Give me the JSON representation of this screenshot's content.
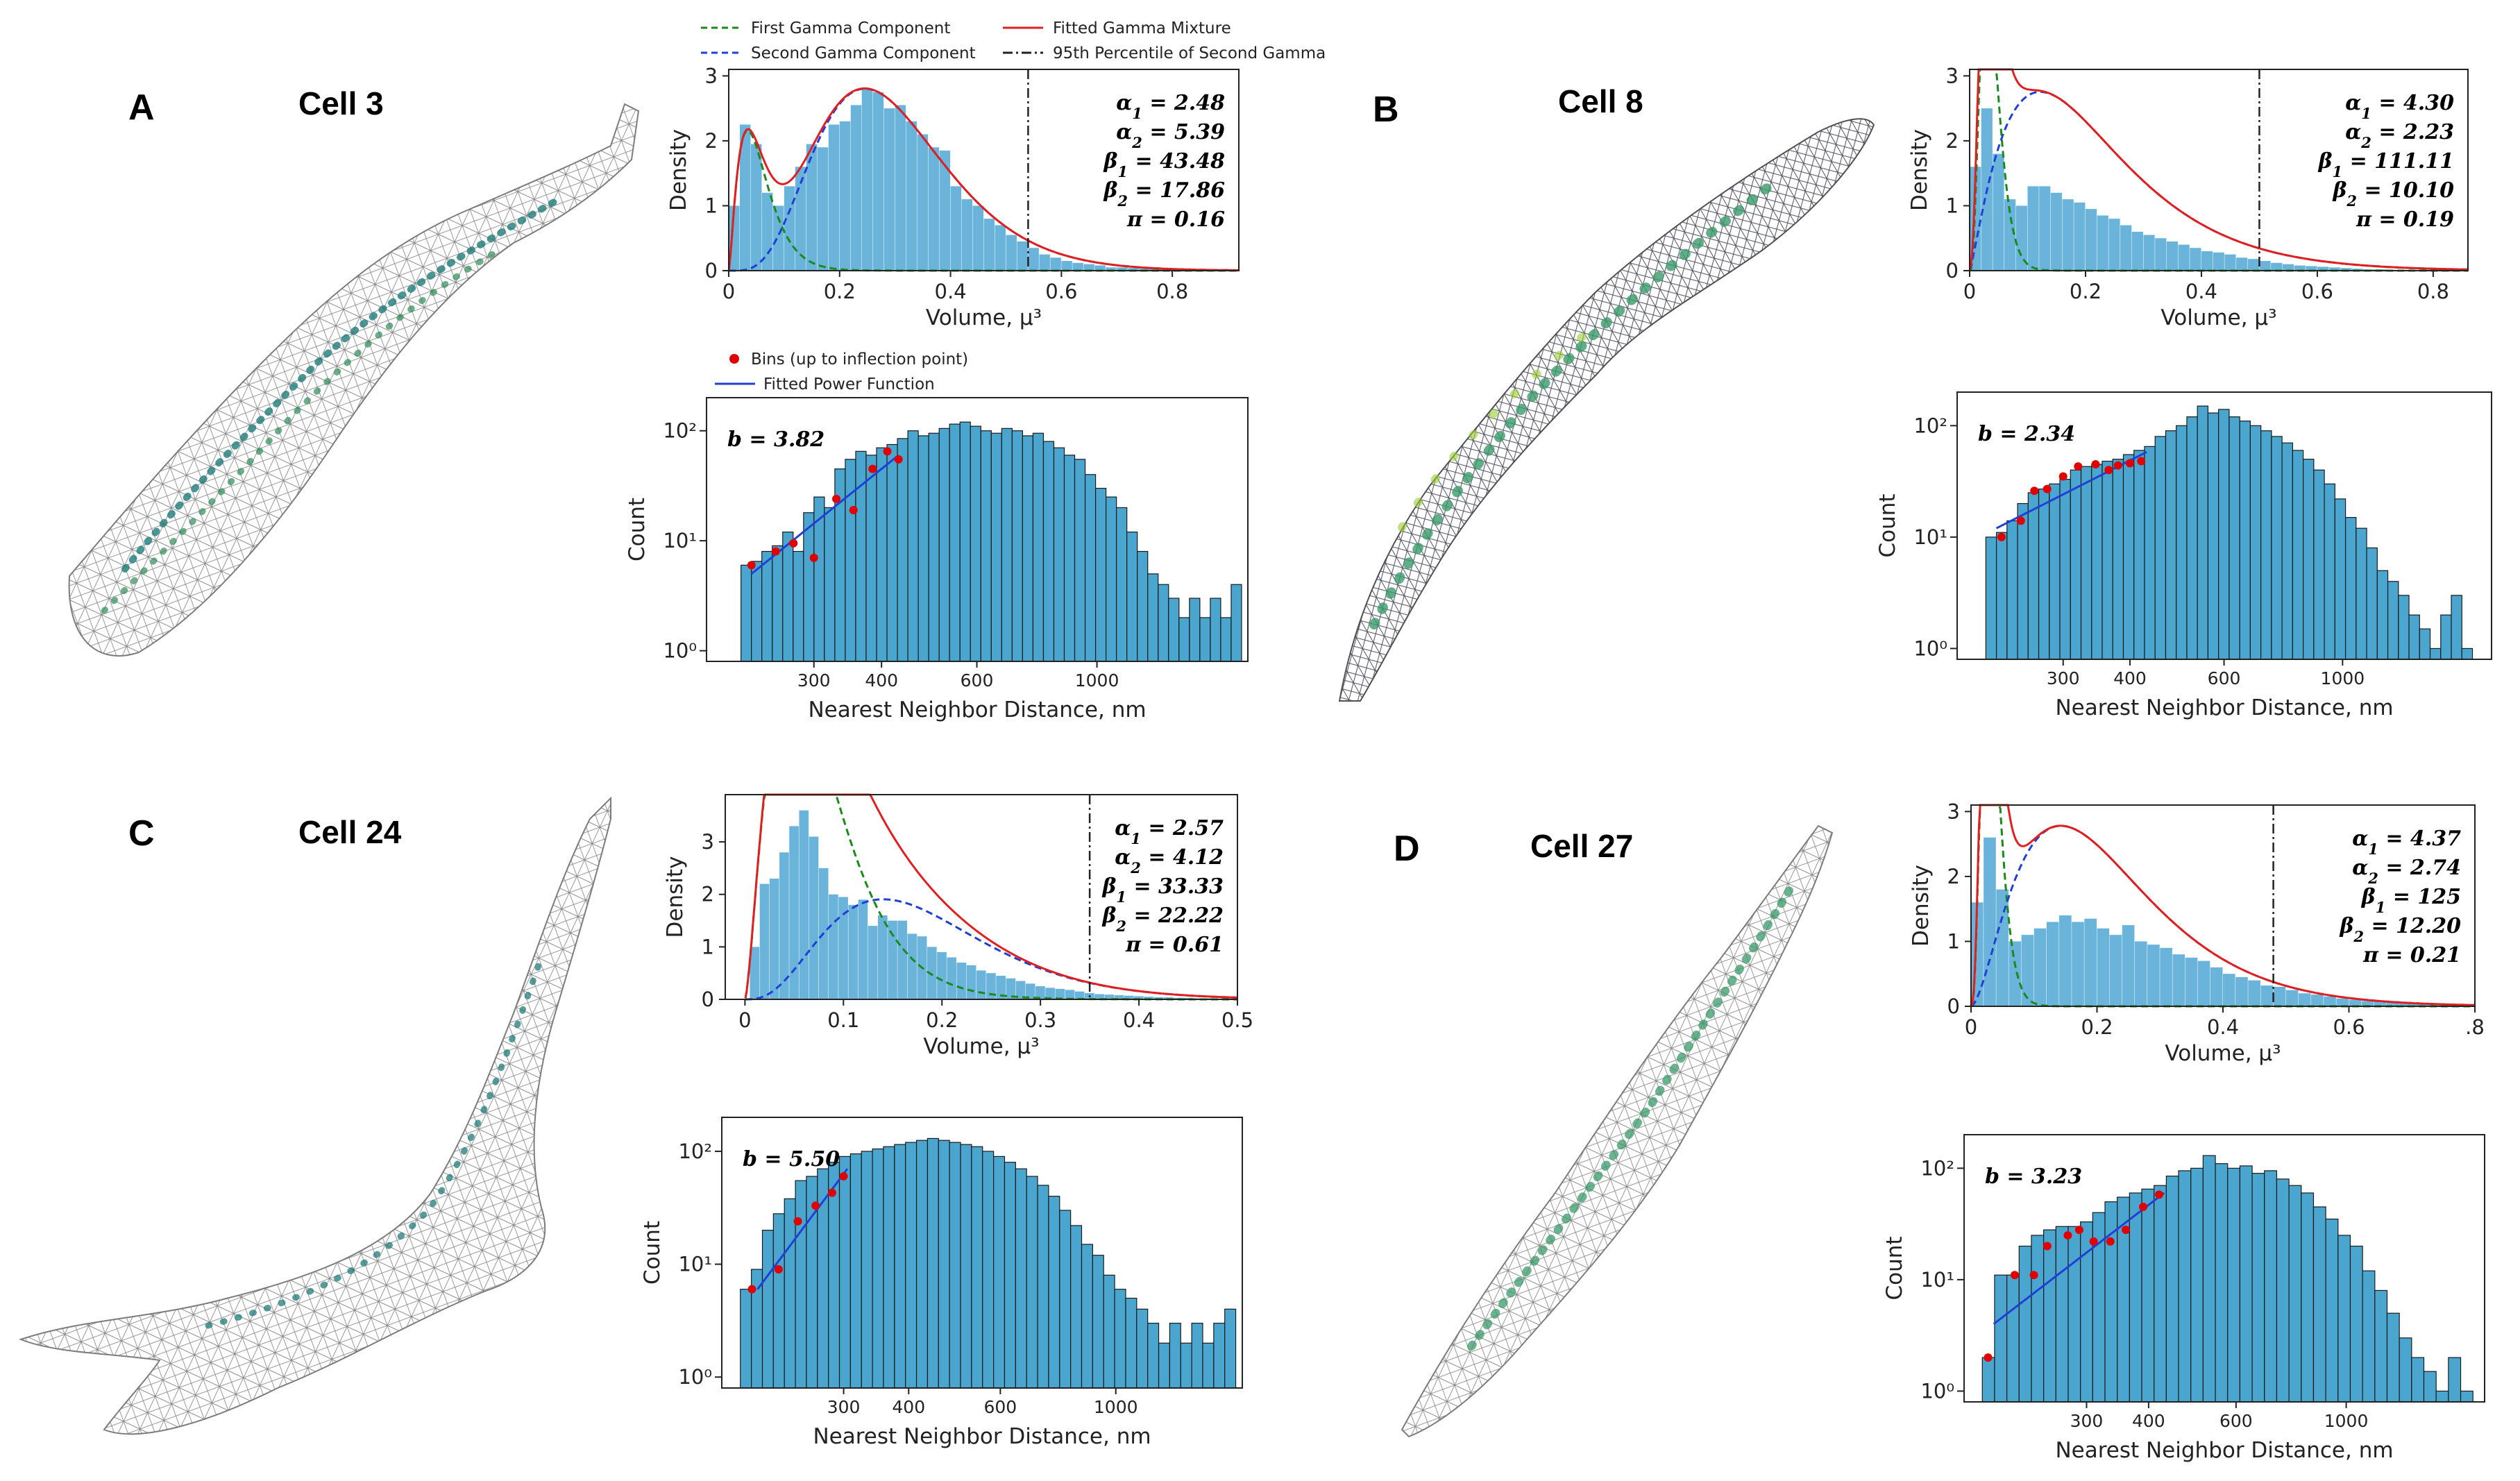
{
  "figure": {
    "legend_gamma": {
      "first": "First Gamma Component",
      "second": "Second Gamma Component",
      "mixture": "Fitted Gamma Mixture",
      "percentile": "95th Percentile of Second Gamma"
    },
    "legend_power": {
      "bins": "Bins (up to inflection point)",
      "fit": "Fitted Power Function"
    },
    "colors": {
      "hist": "#6ab4dc",
      "hist_nn": "#4ba6cf",
      "first": "#1a8a1a",
      "second": "#1f3fd6",
      "mixture": "#e02020",
      "percentile": "#222222",
      "fit": "#1f3fd6",
      "bins": "#e00000"
    }
  },
  "chart_data": [
    {
      "panel": "A",
      "cell_title": "Cell 3",
      "type": "histogram-gamma-mixture",
      "xlabel": "Volume, μ³",
      "ylabel": "Density",
      "xlim": [
        0,
        0.92
      ],
      "ylim": [
        0,
        3.1
      ],
      "xticks": [
        "0",
        "0.2",
        "0.4",
        "0.6",
        "0.8"
      ],
      "xtick_values": [
        0,
        0.2,
        0.4,
        0.6,
        0.8
      ],
      "yticks": [
        "0",
        "1",
        "2",
        "3"
      ],
      "ytick_values": [
        0,
        1,
        2,
        3
      ],
      "params": {
        "alpha1": "2.48",
        "alpha2": "5.39",
        "beta1": "43.48",
        "beta2": "17.86",
        "pi": "0.16"
      },
      "alpha1": 2.48,
      "alpha2": 5.39,
      "beta1": 43.48,
      "beta2": 17.86,
      "pi": 0.16,
      "percentile95": 0.54,
      "hist_bins": [
        0,
        0.02,
        0.04,
        0.06,
        0.08,
        0.1,
        0.12,
        0.14,
        0.16,
        0.18,
        0.2,
        0.22,
        0.24,
        0.26,
        0.28,
        0.3,
        0.32,
        0.34,
        0.36,
        0.38,
        0.4,
        0.42,
        0.44,
        0.46,
        0.48,
        0.5,
        0.52,
        0.54,
        0.56,
        0.58,
        0.6,
        0.62,
        0.64,
        0.66,
        0.68,
        0.7,
        0.72,
        0.74,
        0.76,
        0.78,
        0.8,
        0.82,
        0.84,
        0.86,
        0.88,
        0.9
      ],
      "hist_values": [
        1.0,
        2.25,
        1.95,
        1.2,
        1.0,
        1.3,
        1.6,
        1.95,
        1.9,
        2.25,
        2.3,
        2.55,
        2.8,
        2.75,
        2.5,
        2.55,
        2.3,
        2.1,
        1.9,
        1.85,
        1.3,
        1.1,
        1.0,
        0.8,
        0.7,
        0.55,
        0.45,
        0.35,
        0.25,
        0.2,
        0.15,
        0.12,
        0.1,
        0.08,
        0.05,
        0.05,
        0.04,
        0.03,
        0.03,
        0.02,
        0.02,
        0.01,
        0.01,
        0.0,
        0.02
      ]
    },
    {
      "panel": "A",
      "type": "histogram-power-fit",
      "xlabel": "Nearest Neighbor Distance, nm",
      "ylabel": "Count",
      "yscale": "log",
      "xscale": "log",
      "xlim": [
        190,
        1900
      ],
      "ylim": [
        0.8,
        200
      ],
      "xticks": [
        "300",
        "400",
        "600",
        "1000"
      ],
      "xtick_values": [
        300,
        400,
        600,
        1000
      ],
      "yticks": [
        "10⁰",
        "10¹",
        "10²"
      ],
      "ytick_values": [
        1,
        10,
        100
      ],
      "b": "3.82",
      "bars": [
        6,
        6.5,
        8,
        9,
        12,
        8,
        18,
        25,
        20,
        45,
        55,
        65,
        60,
        70,
        75,
        85,
        100,
        90,
        95,
        105,
        115,
        120,
        110,
        100,
        95,
        105,
        100,
        90,
        95,
        80,
        70,
        60,
        55,
        40,
        30,
        25,
        20,
        12,
        8,
        5,
        4,
        3,
        2,
        3,
        2,
        3,
        2,
        4
      ],
      "bars_x0": 220,
      "bars_x1": 1850,
      "fit_points": [
        [
          230,
          6
        ],
        [
          255,
          8
        ],
        [
          275,
          9.5
        ],
        [
          300,
          7
        ],
        [
          330,
          24
        ],
        [
          355,
          19
        ],
        [
          385,
          45
        ],
        [
          410,
          65
        ],
        [
          430,
          55
        ]
      ],
      "fit_line": {
        "x": [
          230,
          430
        ],
        "y": [
          5,
          60
        ]
      }
    },
    {
      "panel": "B",
      "cell_title": "Cell 8",
      "type": "histogram-gamma-mixture",
      "xlabel": "Volume, μ³",
      "ylabel": "Density",
      "xlim": [
        0,
        0.86
      ],
      "ylim": [
        0,
        3.1
      ],
      "xticks": [
        "0",
        "0.2",
        "0.4",
        "0.6",
        "0.8"
      ],
      "xtick_values": [
        0,
        0.2,
        0.4,
        0.6,
        0.8
      ],
      "yticks": [
        "0",
        "1",
        "2",
        "3"
      ],
      "ytick_values": [
        0,
        1,
        2,
        3
      ],
      "params": {
        "alpha1": "4.30",
        "alpha2": "2.23",
        "beta1": "111.11",
        "beta2": "10.10",
        "pi": "0.19"
      },
      "alpha1": 4.3,
      "alpha2": 2.23,
      "beta1": 111.11,
      "beta2": 10.1,
      "pi": 0.19,
      "percentile95": 0.5,
      "hist_bins": [
        0,
        0.02,
        0.04,
        0.06,
        0.08,
        0.1,
        0.12,
        0.14,
        0.16,
        0.18,
        0.2,
        0.22,
        0.24,
        0.26,
        0.28,
        0.3,
        0.32,
        0.34,
        0.36,
        0.38,
        0.4,
        0.42,
        0.44,
        0.46,
        0.48,
        0.5,
        0.52,
        0.54,
        0.56,
        0.58,
        0.6,
        0.62,
        0.64,
        0.66,
        0.68,
        0.7,
        0.72,
        0.74,
        0.76,
        0.78,
        0.8,
        0.82
      ],
      "hist_values": [
        1.6,
        2.5,
        1.8,
        1.1,
        1.0,
        1.3,
        1.3,
        1.2,
        1.1,
        1.05,
        0.95,
        0.85,
        0.8,
        0.7,
        0.6,
        0.55,
        0.5,
        0.45,
        0.4,
        0.35,
        0.3,
        0.28,
        0.25,
        0.2,
        0.18,
        0.15,
        0.12,
        0.1,
        0.08,
        0.07,
        0.06,
        0.05,
        0.04,
        0.03,
        0.02,
        0.02,
        0.01,
        0.01,
        0.01,
        0.0,
        0.01
      ]
    },
    {
      "panel": "B",
      "type": "histogram-power-fit",
      "xlabel": "Nearest Neighbor Distance, nm",
      "ylabel": "Count",
      "yscale": "log",
      "xscale": "log",
      "xlim": [
        190,
        1900
      ],
      "ylim": [
        0.8,
        200
      ],
      "xticks": [
        "300",
        "400",
        "600",
        "1000"
      ],
      "xtick_values": [
        300,
        400,
        600,
        1000
      ],
      "yticks": [
        "10⁰",
        "10¹",
        "10²"
      ],
      "ytick_values": [
        1,
        10,
        100
      ],
      "b": "2.34",
      "bars": [
        10,
        11,
        14,
        20,
        25,
        27,
        30,
        33,
        40,
        43,
        45,
        48,
        50,
        55,
        60,
        65,
        80,
        90,
        100,
        120,
        150,
        130,
        140,
        120,
        110,
        100,
        90,
        80,
        70,
        60,
        50,
        40,
        30,
        22,
        15,
        12,
        8,
        5,
        4,
        3,
        2,
        1.5,
        1,
        2,
        3,
        1
      ],
      "bars_x0": 215,
      "bars_x1": 1750,
      "fit_points": [
        [
          230,
          10
        ],
        [
          250,
          14
        ],
        [
          265,
          26
        ],
        [
          280,
          27
        ],
        [
          300,
          35
        ],
        [
          320,
          43
        ],
        [
          345,
          45
        ],
        [
          365,
          40
        ],
        [
          380,
          44
        ],
        [
          400,
          46
        ],
        [
          420,
          48
        ]
      ],
      "fit_line": {
        "x": [
          225,
          430
        ],
        "y": [
          12,
          58
        ]
      }
    },
    {
      "panel": "C",
      "cell_title": "Cell 24",
      "type": "histogram-gamma-mixture",
      "xlabel": "Volume, μ³",
      "ylabel": "Density",
      "xlim": [
        -0.02,
        0.5
      ],
      "ylim": [
        0,
        3.9
      ],
      "xticks": [
        "0",
        "0.1",
        "0.2",
        "0.3",
        "0.4",
        "0.5"
      ],
      "xtick_values": [
        0,
        0.1,
        0.2,
        0.3,
        0.4,
        0.5
      ],
      "yticks": [
        "0",
        "1",
        "2",
        "3"
      ],
      "ytick_values": [
        0,
        1,
        2,
        3
      ],
      "params": {
        "alpha1": "2.57",
        "alpha2": "4.12",
        "beta1": "33.33",
        "beta2": "22.22",
        "pi": "0.61"
      },
      "alpha1": 2.57,
      "alpha2": 4.12,
      "beta1": 33.33,
      "beta2": 22.22,
      "pi": 0.61,
      "percentile95": 0.35,
      "hist_bins": [
        0.005,
        0.015,
        0.025,
        0.035,
        0.045,
        0.055,
        0.065,
        0.075,
        0.085,
        0.095,
        0.105,
        0.115,
        0.125,
        0.135,
        0.145,
        0.155,
        0.165,
        0.175,
        0.185,
        0.195,
        0.205,
        0.215,
        0.225,
        0.235,
        0.245,
        0.255,
        0.265,
        0.275,
        0.285,
        0.295,
        0.305,
        0.315,
        0.325,
        0.335,
        0.345,
        0.355,
        0.365,
        0.375,
        0.385,
        0.395,
        0.405,
        0.415,
        0.425,
        0.435,
        0.445,
        0.455,
        0.465,
        0.475
      ],
      "hist_values": [
        1.0,
        2.2,
        2.3,
        2.8,
        3.3,
        3.6,
        3.1,
        2.5,
        2.0,
        1.95,
        1.8,
        1.9,
        1.4,
        1.6,
        1.5,
        1.5,
        1.25,
        1.2,
        1.0,
        0.9,
        0.8,
        0.7,
        0.65,
        0.55,
        0.5,
        0.45,
        0.4,
        0.35,
        0.3,
        0.25,
        0.22,
        0.2,
        0.18,
        0.15,
        0.12,
        0.1,
        0.09,
        0.08,
        0.07,
        0.06,
        0.05,
        0.04,
        0.04,
        0.03,
        0.03,
        0.02,
        0.02,
        0.01
      ]
    },
    {
      "panel": "C",
      "type": "histogram-power-fit",
      "xlabel": "Nearest Neighbor Distance, nm",
      "ylabel": "Count",
      "yscale": "log",
      "xscale": "log",
      "xlim": [
        175,
        1750
      ],
      "ylim": [
        0.8,
        200
      ],
      "xticks": [
        "300",
        "400",
        "600",
        "1000"
      ],
      "xtick_values": [
        300,
        400,
        600,
        1000
      ],
      "yticks": [
        "10⁰",
        "10¹",
        "10²"
      ],
      "ytick_values": [
        1,
        10,
        100
      ],
      "b": "5.50",
      "bars": [
        6,
        9,
        20,
        28,
        38,
        55,
        60,
        70,
        80,
        90,
        95,
        100,
        105,
        110,
        115,
        120,
        125,
        130,
        125,
        120,
        115,
        110,
        100,
        90,
        80,
        70,
        60,
        50,
        40,
        30,
        22,
        15,
        12,
        8,
        6,
        5,
        4,
        3,
        2,
        3,
        2,
        3,
        2,
        3,
        4
      ],
      "bars_x0": 190,
      "bars_x1": 1700,
      "fit_points": [
        [
          200,
          6
        ],
        [
          225,
          9
        ],
        [
          245,
          24
        ],
        [
          265,
          33
        ],
        [
          285,
          43
        ],
        [
          300,
          60
        ]
      ],
      "fit_line": {
        "x": [
          205,
          305
        ],
        "y": [
          6,
          70
        ]
      }
    },
    {
      "panel": "D",
      "cell_title": "Cell 27",
      "type": "histogram-gamma-mixture",
      "xlabel": "Volume, μ³",
      "ylabel": "Density",
      "xlim": [
        0,
        0.8
      ],
      "ylim": [
        0,
        3.1
      ],
      "xticks": [
        "0",
        "0.2",
        "0.4",
        "0.6",
        ".8"
      ],
      "xtick_values": [
        0,
        0.2,
        0.4,
        0.6,
        0.8
      ],
      "yticks": [
        "0",
        "1",
        "2",
        "3"
      ],
      "ytick_values": [
        0,
        1,
        2,
        3
      ],
      "params": {
        "alpha1": "4.37",
        "alpha2": "2.74",
        "beta1": "125",
        "beta2": "12.20",
        "pi": "0.21"
      },
      "alpha1": 4.37,
      "alpha2": 2.74,
      "beta1": 125,
      "beta2": 12.2,
      "pi": 0.21,
      "percentile95": 0.48,
      "hist_bins": [
        0,
        0.02,
        0.04,
        0.06,
        0.08,
        0.1,
        0.12,
        0.14,
        0.16,
        0.18,
        0.2,
        0.22,
        0.24,
        0.26,
        0.28,
        0.3,
        0.32,
        0.34,
        0.36,
        0.38,
        0.4,
        0.42,
        0.44,
        0.46,
        0.48,
        0.5,
        0.52,
        0.54,
        0.56,
        0.58,
        0.6,
        0.62,
        0.64,
        0.66,
        0.68,
        0.7,
        0.72,
        0.74,
        0.76
      ],
      "hist_values": [
        1.6,
        2.6,
        1.8,
        1.0,
        1.1,
        1.2,
        1.3,
        1.4,
        1.3,
        1.35,
        1.2,
        1.1,
        1.25,
        1.0,
        0.95,
        0.9,
        0.8,
        0.75,
        0.7,
        0.6,
        0.5,
        0.45,
        0.4,
        0.32,
        0.3,
        0.25,
        0.2,
        0.18,
        0.15,
        0.12,
        0.1,
        0.08,
        0.07,
        0.06,
        0.05,
        0.04,
        0.03,
        0.02,
        0.01
      ]
    },
    {
      "panel": "D",
      "type": "histogram-power-fit",
      "xlabel": "Nearest Neighbor Distance, nm",
      "ylabel": "Count",
      "yscale": "log",
      "xscale": "log",
      "xlim": [
        170,
        1900
      ],
      "ylim": [
        0.8,
        200
      ],
      "xticks": [
        "300",
        "400",
        "600",
        "1000"
      ],
      "xtick_values": [
        300,
        400,
        600,
        1000
      ],
      "yticks": [
        "10⁰",
        "10¹",
        "10²"
      ],
      "ytick_values": [
        1,
        10,
        100
      ],
      "b": "3.23",
      "bars": [
        2,
        11,
        11,
        20,
        25,
        28,
        30,
        30,
        33,
        40,
        50,
        55,
        60,
        65,
        70,
        85,
        95,
        100,
        130,
        110,
        100,
        105,
        90,
        95,
        80,
        70,
        60,
        45,
        35,
        25,
        20,
        12,
        8,
        5,
        3,
        2,
        1.5,
        1,
        2,
        1
      ],
      "bars_x0": 185,
      "bars_x1": 1800,
      "fit_points": [
        [
          190,
          2
        ],
        [
          215,
          11
        ],
        [
          235,
          11
        ],
        [
          250,
          20
        ],
        [
          275,
          25
        ],
        [
          290,
          28
        ],
        [
          310,
          22
        ],
        [
          335,
          22
        ],
        [
          360,
          28
        ],
        [
          390,
          45
        ],
        [
          420,
          58
        ]
      ],
      "fit_line": {
        "x": [
          195,
          430
        ],
        "y": [
          4,
          60
        ]
      }
    }
  ]
}
